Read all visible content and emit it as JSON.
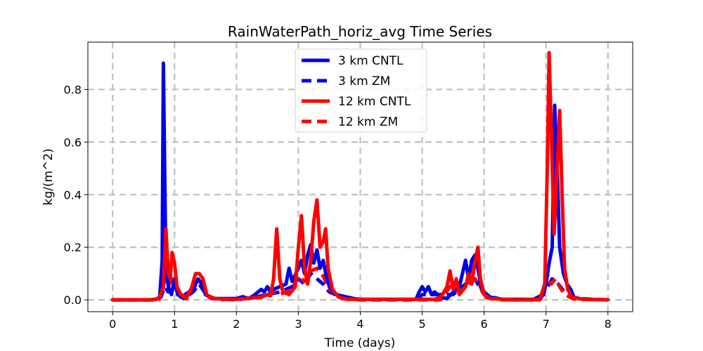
{
  "chart_data": {
    "type": "line",
    "title": "RainWaterPath_horiz_avg Time Series",
    "xlabel": "Time (days)",
    "ylabel": "kg/(m^2)",
    "xlim": [
      -0.4,
      8.4
    ],
    "ylim": [
      -0.045,
      0.98
    ],
    "xticks": [
      0,
      1,
      2,
      3,
      4,
      5,
      6,
      7,
      8
    ],
    "xtick_labels": [
      "0",
      "1",
      "2",
      "3",
      "4",
      "5",
      "6",
      "7",
      "8"
    ],
    "yticks": [
      0.0,
      0.2,
      0.4,
      0.6,
      0.8
    ],
    "ytick_labels": [
      "0.0",
      "0.2",
      "0.4",
      "0.6",
      "0.8"
    ],
    "grid": true,
    "legend_position": "top-center",
    "series": [
      {
        "name": "3 km CNTL",
        "color": "#0000ee",
        "style": "solid",
        "points": [
          [
            0,
            0
          ],
          [
            0.6,
            0
          ],
          [
            0.7,
            0.002
          ],
          [
            0.76,
            0.01
          ],
          [
            0.8,
            0.15
          ],
          [
            0.82,
            0.9
          ],
          [
            0.84,
            0.5
          ],
          [
            0.86,
            0.12
          ],
          [
            0.9,
            0.05
          ],
          [
            0.95,
            0.02
          ],
          [
            1.0,
            0.08
          ],
          [
            1.04,
            0.03
          ],
          [
            1.1,
            0.01
          ],
          [
            1.3,
            0.04
          ],
          [
            1.38,
            0.08
          ],
          [
            1.44,
            0.06
          ],
          [
            1.5,
            0.02
          ],
          [
            1.6,
            0.005
          ],
          [
            2.0,
            0.005
          ],
          [
            2.1,
            0.012
          ],
          [
            2.2,
            0.005
          ],
          [
            2.3,
            0.02
          ],
          [
            2.4,
            0.04
          ],
          [
            2.45,
            0.03
          ],
          [
            2.5,
            0.05
          ],
          [
            2.55,
            0.03
          ],
          [
            2.6,
            0.04
          ],
          [
            2.7,
            0.05
          ],
          [
            2.8,
            0.06
          ],
          [
            2.85,
            0.12
          ],
          [
            2.9,
            0.07
          ],
          [
            3.0,
            0.12
          ],
          [
            3.05,
            0.15
          ],
          [
            3.1,
            0.1
          ],
          [
            3.15,
            0.17
          ],
          [
            3.2,
            0.21
          ],
          [
            3.25,
            0.14
          ],
          [
            3.3,
            0.19
          ],
          [
            3.35,
            0.12
          ],
          [
            3.4,
            0.15
          ],
          [
            3.45,
            0.09
          ],
          [
            3.5,
            0.05
          ],
          [
            3.6,
            0.02
          ],
          [
            3.7,
            0.015
          ],
          [
            3.8,
            0.01
          ],
          [
            3.9,
            0.005
          ],
          [
            4.0,
            0.002
          ],
          [
            4.9,
            0.002
          ],
          [
            4.95,
            0.03
          ],
          [
            5.0,
            0.05
          ],
          [
            5.05,
            0.03
          ],
          [
            5.1,
            0.05
          ],
          [
            5.15,
            0.02
          ],
          [
            5.2,
            0.03
          ],
          [
            5.3,
            0.01
          ],
          [
            5.4,
            0.005
          ],
          [
            5.5,
            0.03
          ],
          [
            5.6,
            0.05
          ],
          [
            5.65,
            0.1
          ],
          [
            5.7,
            0.15
          ],
          [
            5.75,
            0.08
          ],
          [
            5.8,
            0.15
          ],
          [
            5.85,
            0.17
          ],
          [
            5.9,
            0.12
          ],
          [
            5.95,
            0.05
          ],
          [
            6.0,
            0.03
          ],
          [
            6.1,
            0.01
          ],
          [
            6.3,
            0.002
          ],
          [
            6.8,
            0.002
          ],
          [
            6.95,
            0.02
          ],
          [
            7.0,
            0.06
          ],
          [
            7.05,
            0.14
          ],
          [
            7.1,
            0.2
          ],
          [
            7.14,
            0.74
          ],
          [
            7.18,
            0.5
          ],
          [
            7.22,
            0.2
          ],
          [
            7.28,
            0.1
          ],
          [
            7.34,
            0.06
          ],
          [
            7.4,
            0.04
          ],
          [
            7.45,
            0.01
          ],
          [
            7.6,
            0.002
          ],
          [
            8.0,
            0
          ]
        ]
      },
      {
        "name": "3 km ZM",
        "color": "#0000ee",
        "style": "dashed",
        "points": [
          [
            0,
            0
          ],
          [
            0.7,
            0
          ],
          [
            0.78,
            0.01
          ],
          [
            0.84,
            0.05
          ],
          [
            0.9,
            0.03
          ],
          [
            0.98,
            0.04
          ],
          [
            1.05,
            0.02
          ],
          [
            1.15,
            0.005
          ],
          [
            1.3,
            0.03
          ],
          [
            1.4,
            0.06
          ],
          [
            1.48,
            0.03
          ],
          [
            1.6,
            0.005
          ],
          [
            2.0,
            0
          ],
          [
            2.3,
            0.01
          ],
          [
            2.5,
            0.02
          ],
          [
            2.7,
            0.03
          ],
          [
            2.9,
            0.05
          ],
          [
            3.0,
            0.08
          ],
          [
            3.1,
            0.06
          ],
          [
            3.2,
            0.1
          ],
          [
            3.3,
            0.08
          ],
          [
            3.4,
            0.06
          ],
          [
            3.5,
            0.03
          ],
          [
            3.7,
            0.01
          ],
          [
            4.0,
            0
          ],
          [
            4.9,
            0
          ],
          [
            5.0,
            0.02
          ],
          [
            5.2,
            0.02
          ],
          [
            5.5,
            0.02
          ],
          [
            5.7,
            0.06
          ],
          [
            5.85,
            0.08
          ],
          [
            6.0,
            0.02
          ],
          [
            6.3,
            0
          ],
          [
            6.9,
            0
          ],
          [
            7.0,
            0.04
          ],
          [
            7.1,
            0.08
          ],
          [
            7.2,
            0.06
          ],
          [
            7.3,
            0.03
          ],
          [
            7.5,
            0.005
          ],
          [
            8.0,
            0
          ]
        ]
      },
      {
        "name": "12 km CNTL",
        "color": "#ff0000",
        "style": "solid",
        "points": [
          [
            0,
            0
          ],
          [
            0.6,
            0
          ],
          [
            0.75,
            0.005
          ],
          [
            0.82,
            0.05
          ],
          [
            0.86,
            0.27
          ],
          [
            0.9,
            0.1
          ],
          [
            0.93,
            0.08
          ],
          [
            0.96,
            0.18
          ],
          [
            1.0,
            0.14
          ],
          [
            1.04,
            0.05
          ],
          [
            1.1,
            0.02
          ],
          [
            1.2,
            0.01
          ],
          [
            1.28,
            0.05
          ],
          [
            1.34,
            0.1
          ],
          [
            1.4,
            0.1
          ],
          [
            1.46,
            0.08
          ],
          [
            1.52,
            0.02
          ],
          [
            1.6,
            0.005
          ],
          [
            2.0,
            0.002
          ],
          [
            2.4,
            0.01
          ],
          [
            2.5,
            0.02
          ],
          [
            2.55,
            0.015
          ],
          [
            2.6,
            0.08
          ],
          [
            2.65,
            0.27
          ],
          [
            2.7,
            0.08
          ],
          [
            2.75,
            0.03
          ],
          [
            2.85,
            0.02
          ],
          [
            2.95,
            0.05
          ],
          [
            3.0,
            0.2
          ],
          [
            3.05,
            0.32
          ],
          [
            3.1,
            0.12
          ],
          [
            3.15,
            0.06
          ],
          [
            3.2,
            0.15
          ],
          [
            3.25,
            0.3
          ],
          [
            3.3,
            0.38
          ],
          [
            3.35,
            0.2
          ],
          [
            3.4,
            0.22
          ],
          [
            3.44,
            0.27
          ],
          [
            3.48,
            0.12
          ],
          [
            3.55,
            0.04
          ],
          [
            3.65,
            0.01
          ],
          [
            3.8,
            0.002
          ],
          [
            5.2,
            0.002
          ],
          [
            5.3,
            0.01
          ],
          [
            5.4,
            0.05
          ],
          [
            5.45,
            0.11
          ],
          [
            5.5,
            0.04
          ],
          [
            5.55,
            0.08
          ],
          [
            5.6,
            0.02
          ],
          [
            5.7,
            0.05
          ],
          [
            5.75,
            0.1
          ],
          [
            5.8,
            0.06
          ],
          [
            5.85,
            0.14
          ],
          [
            5.9,
            0.2
          ],
          [
            5.94,
            0.08
          ],
          [
            6.0,
            0.02
          ],
          [
            6.1,
            0.005
          ],
          [
            6.5,
            0
          ],
          [
            6.9,
            0.002
          ],
          [
            6.98,
            0.06
          ],
          [
            7.02,
            0.5
          ],
          [
            7.05,
            0.94
          ],
          [
            7.09,
            0.6
          ],
          [
            7.13,
            0.25
          ],
          [
            7.18,
            0.5
          ],
          [
            7.22,
            0.72
          ],
          [
            7.26,
            0.4
          ],
          [
            7.3,
            0.12
          ],
          [
            7.35,
            0.04
          ],
          [
            7.42,
            0.01
          ],
          [
            7.6,
            0.002
          ],
          [
            8.0,
            0
          ]
        ]
      },
      {
        "name": "12 km ZM",
        "color": "#ff0000",
        "style": "dashed",
        "points": [
          [
            0,
            0
          ],
          [
            0.75,
            0
          ],
          [
            0.85,
            0.08
          ],
          [
            0.9,
            0.05
          ],
          [
            0.97,
            0.09
          ],
          [
            1.05,
            0.02
          ],
          [
            1.2,
            0.005
          ],
          [
            1.32,
            0.05
          ],
          [
            1.42,
            0.07
          ],
          [
            1.5,
            0.02
          ],
          [
            1.7,
            0
          ],
          [
            2.4,
            0.01
          ],
          [
            2.6,
            0.03
          ],
          [
            2.7,
            0.02
          ],
          [
            2.9,
            0.04
          ],
          [
            3.0,
            0.09
          ],
          [
            3.1,
            0.07
          ],
          [
            3.2,
            0.11
          ],
          [
            3.3,
            0.12
          ],
          [
            3.4,
            0.09
          ],
          [
            3.5,
            0.04
          ],
          [
            3.7,
            0.005
          ],
          [
            4.0,
            0
          ],
          [
            5.3,
            0
          ],
          [
            5.45,
            0.05
          ],
          [
            5.6,
            0.03
          ],
          [
            5.8,
            0.07
          ],
          [
            5.9,
            0.08
          ],
          [
            6.0,
            0.01
          ],
          [
            6.3,
            0
          ],
          [
            6.95,
            0
          ],
          [
            7.02,
            0.1
          ],
          [
            7.08,
            0.06
          ],
          [
            7.15,
            0.08
          ],
          [
            7.22,
            0.05
          ],
          [
            7.3,
            0.02
          ],
          [
            7.45,
            0.003
          ],
          [
            8.0,
            0
          ]
        ]
      }
    ]
  }
}
